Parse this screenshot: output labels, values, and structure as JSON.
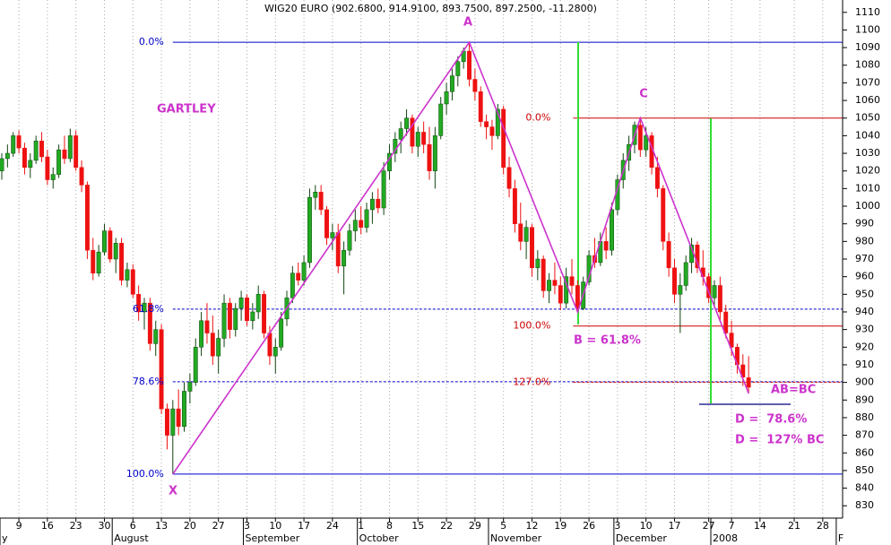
{
  "chart_data": {
    "type": "candlestick",
    "title": "WIG20 EURO (902.6800, 914.9100, 893.7500, 897.2500, -11.2800)",
    "categories": [
      null,
      null,
      null,
      "9",
      null,
      null,
      null,
      null,
      "16",
      null,
      null,
      null,
      null,
      "23",
      null,
      null,
      null,
      null,
      "30",
      null,
      null,
      null,
      null,
      "6",
      null,
      null,
      null,
      null,
      "13",
      null,
      null,
      null,
      null,
      "20",
      null,
      null,
      null,
      null,
      "27",
      null,
      null,
      null,
      null,
      "3",
      null,
      null,
      null,
      null,
      "10",
      null,
      null,
      null,
      null,
      "17",
      null,
      null,
      null,
      null,
      "24",
      null,
      null,
      null,
      null,
      "1",
      null,
      null,
      null,
      null,
      "8",
      null,
      null,
      null,
      null,
      "15",
      null,
      null,
      null,
      null,
      "22",
      null,
      null,
      null,
      null,
      "29",
      null,
      null,
      null,
      null,
      "5",
      null,
      null,
      null,
      null,
      "12",
      null,
      null,
      null,
      null,
      "19",
      null,
      null,
      null,
      null,
      "26",
      null,
      null,
      null,
      null,
      "3",
      null,
      null,
      null,
      null,
      "10",
      null,
      null,
      null,
      null,
      "17",
      null,
      null,
      null,
      null,
      null,
      "27",
      null,
      null,
      null,
      "7",
      null,
      null,
      null,
      null,
      "14",
      null,
      null,
      null,
      null,
      null,
      "21",
      null,
      null,
      null,
      null,
      "28",
      null,
      null,
      null
    ],
    "month_labels": [
      "y",
      null,
      null,
      null,
      null,
      null,
      null,
      null,
      null,
      null,
      null,
      null,
      null,
      null,
      null,
      null,
      null,
      null,
      null,
      null,
      "August",
      null,
      null,
      null,
      null,
      null,
      null,
      null,
      null,
      null,
      null,
      null,
      null,
      null,
      null,
      null,
      null,
      null,
      null,
      null,
      null,
      null,
      null,
      "September",
      null,
      null,
      null,
      null,
      null,
      null,
      null,
      null,
      null,
      null,
      null,
      null,
      null,
      null,
      null,
      null,
      null,
      null,
      null,
      "October",
      null,
      null,
      null,
      null,
      null,
      null,
      null,
      null,
      null,
      null,
      null,
      null,
      null,
      null,
      null,
      null,
      null,
      null,
      null,
      null,
      null,
      null,
      "November",
      null,
      null,
      null,
      null,
      null,
      null,
      null,
      null,
      null,
      null,
      null,
      null,
      null,
      null,
      null,
      null,
      null,
      null,
      null,
      null,
      null,
      "December",
      null,
      null,
      null,
      null,
      null,
      null,
      null,
      null,
      null,
      null,
      null,
      null,
      null,
      null,
      null,
      null,
      "2008",
      null,
      null,
      null,
      null,
      null,
      null,
      null,
      null,
      null,
      null,
      null,
      null,
      null,
      null,
      null,
      null,
      null,
      null,
      null,
      null,
      null,
      "F"
    ],
    "open": [
      1020,
      1027,
      1030,
      1040,
      1033,
      1022,
      1026,
      1037,
      1028,
      1015,
      1018,
      1032,
      1027,
      1040,
      1022,
      1012,
      975,
      962,
      974,
      986,
      970,
      979,
      958,
      964,
      950,
      940,
      945,
      922,
      930,
      885,
      870,
      885,
      875,
      895,
      900,
      920,
      935,
      928,
      915,
      925,
      945,
      930,
      942,
      948,
      935,
      940,
      950,
      928,
      915,
      920,
      936,
      948,
      962,
      958,
      968,
      1005,
      1008,
      998,
      982,
      985,
      966,
      975,
      986,
      992,
      988,
      998,
      1004,
      999,
      1020,
      1030,
      1038,
      1044,
      1050,
      1034,
      1042,
      1035,
      1020,
      1040,
      1058,
      1065,
      1074,
      1082,
      1088,
      1072,
      1065,
      1048,
      1045,
      1040,
      1055,
      1022,
      1010,
      990,
      980,
      988,
      965,
      970,
      952,
      958,
      955,
      945,
      960,
      955,
      942,
      957,
      972,
      968,
      980,
      975,
      998,
      1015,
      1026,
      1035,
      1046,
      1032,
      1040,
      1022,
      1010,
      980,
      965,
      950,
      955,
      968,
      978,
      965,
      960,
      948,
      955,
      940,
      928,
      920,
      910,
      902.68,
      null,
      null,
      null,
      null,
      null,
      null,
      null,
      null,
      null,
      null,
      null,
      null,
      null,
      null,
      null,
      null
    ],
    "high": [
      1030,
      1035,
      1042,
      1043,
      1036,
      1030,
      1040,
      1042,
      1032,
      1022,
      1035,
      1040,
      1044,
      1043,
      1026,
      1014,
      982,
      978,
      990,
      988,
      982,
      982,
      968,
      967,
      955,
      948,
      948,
      935,
      933,
      888,
      890,
      896,
      900,
      905,
      925,
      940,
      945,
      938,
      930,
      950,
      948,
      945,
      952,
      950,
      945,
      955,
      952,
      932,
      925,
      940,
      952,
      966,
      968,
      972,
      1010,
      1012,
      1012,
      1000,
      990,
      990,
      980,
      990,
      998,
      1000,
      1002,
      1008,
      1010,
      1025,
      1035,
      1042,
      1048,
      1055,
      1052,
      1045,
      1048,
      1045,
      1045,
      1062,
      1070,
      1078,
      1085,
      1090,
      1093,
      1078,
      1068,
      1052,
      1049,
      1058,
      1057,
      1028,
      1015,
      1002,
      992,
      990,
      975,
      972,
      962,
      968,
      960,
      965,
      970,
      958,
      960,
      975,
      982,
      985,
      988,
      1002,
      1018,
      1030,
      1040,
      1048,
      1050,
      1045,
      1042,
      1028,
      1012,
      985,
      970,
      962,
      972,
      982,
      980,
      975,
      962,
      958,
      960,
      944,
      935,
      922,
      916,
      914.91,
      null,
      null,
      null,
      null,
      null,
      null,
      null,
      null,
      null,
      null,
      null,
      null,
      null,
      null,
      null,
      null
    ],
    "low": [
      1015,
      1022,
      1028,
      1030,
      1018,
      1016,
      1024,
      1025,
      1012,
      1010,
      1016,
      1024,
      1025,
      1020,
      1008,
      970,
      958,
      960,
      972,
      968,
      962,
      955,
      954,
      948,
      935,
      930,
      918,
      915,
      882,
      862,
      848,
      870,
      872,
      888,
      898,
      915,
      922,
      910,
      905,
      920,
      925,
      926,
      935,
      932,
      930,
      936,
      925,
      910,
      905,
      918,
      932,
      945,
      955,
      955,
      965,
      998,
      995,
      978,
      975,
      962,
      950,
      972,
      980,
      984,
      985,
      990,
      996,
      995,
      1015,
      1025,
      1030,
      1040,
      1030,
      1028,
      1030,
      1015,
      1010,
      1038,
      1052,
      1060,
      1068,
      1078,
      1068,
      1060,
      1045,
      1038,
      1032,
      1038,
      1018,
      1005,
      985,
      975,
      970,
      960,
      958,
      948,
      945,
      950,
      941,
      942,
      950,
      940,
      941,
      955,
      965,
      966,
      970,
      972,
      995,
      1010,
      1020,
      1030,
      1028,
      1028,
      1018,
      1005,
      975,
      960,
      945,
      928,
      952,
      962,
      962,
      955,
      945,
      942,
      935,
      925,
      915,
      905,
      898,
      893.75,
      null,
      null,
      null,
      null,
      null,
      null,
      null,
      null,
      null,
      null,
      null,
      null,
      null,
      null,
      null,
      null
    ],
    "close": [
      1027,
      1030,
      1040,
      1033,
      1022,
      1026,
      1037,
      1028,
      1015,
      1018,
      1032,
      1027,
      1040,
      1022,
      1012,
      975,
      962,
      974,
      986,
      970,
      979,
      958,
      964,
      950,
      940,
      945,
      922,
      930,
      885,
      870,
      885,
      875,
      895,
      900,
      920,
      935,
      928,
      915,
      925,
      945,
      930,
      942,
      948,
      935,
      940,
      950,
      928,
      915,
      920,
      936,
      948,
      962,
      958,
      968,
      1005,
      1008,
      998,
      982,
      985,
      966,
      975,
      986,
      992,
      988,
      998,
      1004,
      999,
      1020,
      1030,
      1038,
      1044,
      1050,
      1034,
      1042,
      1035,
      1020,
      1040,
      1058,
      1065,
      1074,
      1082,
      1088,
      1072,
      1065,
      1048,
      1045,
      1040,
      1055,
      1022,
      1010,
      990,
      980,
      988,
      965,
      970,
      952,
      958,
      955,
      945,
      960,
      955,
      942,
      957,
      972,
      968,
      980,
      975,
      998,
      1015,
      1026,
      1035,
      1046,
      1032,
      1040,
      1022,
      1010,
      980,
      965,
      950,
      955,
      968,
      978,
      965,
      960,
      948,
      955,
      940,
      928,
      920,
      910,
      903,
      897.25,
      null,
      null,
      null,
      null,
      null,
      null,
      null,
      null,
      null,
      null,
      null,
      null,
      null,
      null,
      null,
      null
    ],
    "up_color": "#22aa22",
    "down_color": "#ee1111",
    "ylim": [
      823,
      1117
    ],
    "yticks": [
      830,
      840,
      850,
      860,
      870,
      880,
      890,
      900,
      910,
      920,
      930,
      940,
      950,
      960,
      970,
      980,
      990,
      1000,
      1010,
      1020,
      1030,
      1040,
      1050,
      1060,
      1070,
      1080,
      1090,
      1100,
      1110
    ],
    "grid": "x",
    "pattern": {
      "color": "#cc33cc",
      "values": [
        848,
        1093,
        940,
        1050,
        893.75
      ]
    },
    "fib_left": {
      "color": "#0000cc",
      "labels": [
        "0.0%",
        "61.8%",
        "78.6%",
        "100.0%"
      ],
      "values": [
        1093,
        941.6,
        900.4,
        848
      ]
    },
    "fib_right": {
      "color": "#cc0000",
      "labels": [
        "0.0%",
        "100.0%",
        "127.0%"
      ],
      "values": [
        1050,
        932,
        900.1
      ]
    },
    "annotations": [
      "GARTLEY",
      "A",
      "C",
      "X",
      "B = 61.8%",
      "AB=BC",
      "D =  78.6%",
      "D =  127% BC"
    ]
  }
}
